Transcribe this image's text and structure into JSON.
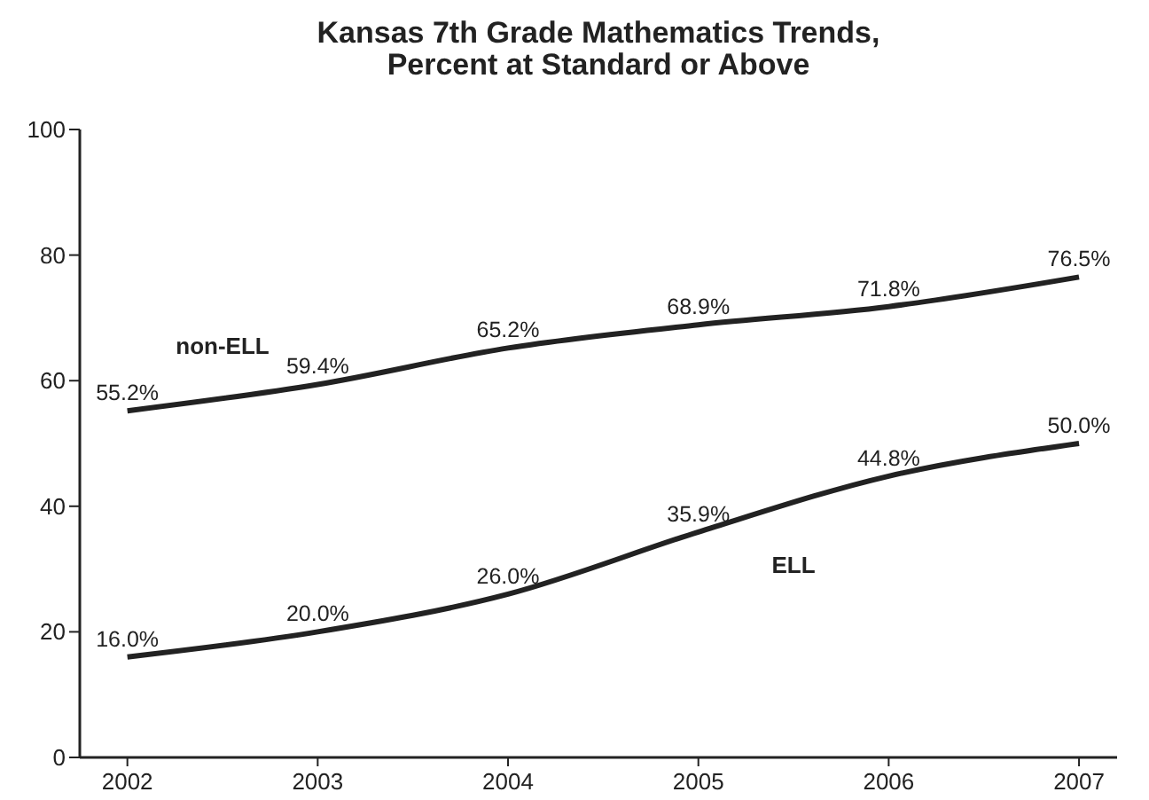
{
  "chart_data": {
    "type": "line",
    "title": "Kansas 7th Grade Mathematics Trends,\nPercent at Standard or Above",
    "x": [
      2002,
      2003,
      2004,
      2005,
      2006,
      2007
    ],
    "xlim": [
      2001.75,
      2007.2
    ],
    "xticks": [
      2002,
      2003,
      2004,
      2005,
      2006,
      2007
    ],
    "ylim": [
      0,
      100
    ],
    "yticks": [
      0,
      20,
      40,
      60,
      80,
      100
    ],
    "grid": false,
    "legend": false,
    "marker": "none",
    "line_style": "solid",
    "series": [
      {
        "name": "non-ELL",
        "color": "#222222",
        "values": [
          55.2,
          59.4,
          65.2,
          68.9,
          71.8,
          76.5
        ],
        "value_labels": [
          "55.2%",
          "59.4%",
          "65.2%",
          "68.9%",
          "71.8%",
          "76.5%"
        ]
      },
      {
        "name": "ELL",
        "color": "#222222",
        "values": [
          16.0,
          20.0,
          26.0,
          35.9,
          44.8,
          50.0
        ],
        "value_labels": [
          "16.0%",
          "20.0%",
          "26.0%",
          "35.9%",
          "44.8%",
          "50.0%"
        ]
      }
    ]
  }
}
